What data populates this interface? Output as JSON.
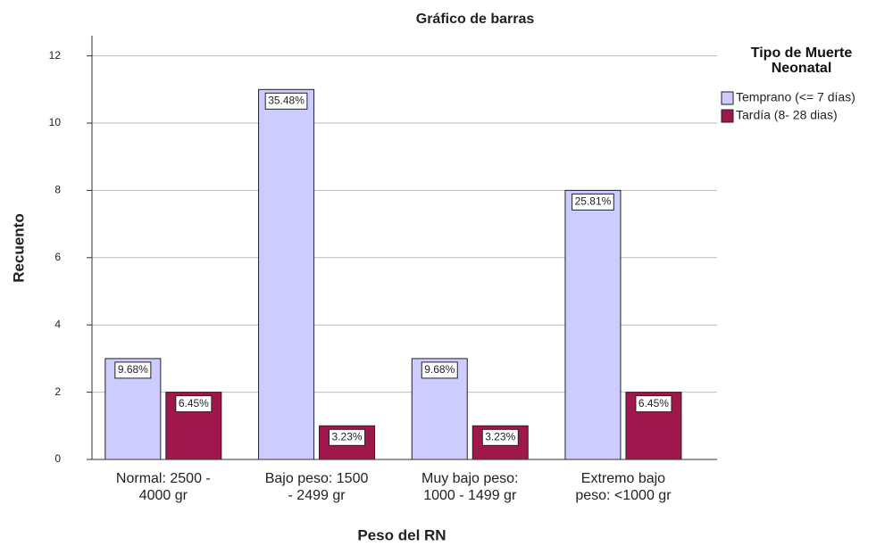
{
  "chart_data": {
    "type": "bar",
    "title": "Gráfico de barras",
    "x_label": "Peso del RN",
    "y_label": "Recuento",
    "categories": [
      "Normal: 2500 -\n4000 gr",
      "Bajo peso: 1500\n- 2499 gr",
      "Muy bajo peso:\n1000 - 1499 gr",
      "Extremo bajo\npeso: <1000 gr"
    ],
    "legend_title": "Tipo de Muerte\nNeonatal",
    "series": [
      {
        "name": "Temprano (<= 7 días)",
        "color": "#ccccff",
        "values": [
          3,
          11,
          3,
          8
        ],
        "percent_labels": [
          {
            "value": 9.68,
            "label": "9.68%"
          },
          {
            "value": 35.48,
            "label": "35.48%"
          },
          {
            "value": 9.68,
            "label": "9.68%"
          },
          {
            "value": 25.81,
            "label": "25.81%"
          }
        ]
      },
      {
        "name": "Tardía (8- 28 dias)",
        "color": "#a0174b",
        "values": [
          2,
          1,
          1,
          2
        ],
        "percent_labels": [
          {
            "value": 6.45,
            "label": "6.45%"
          },
          {
            "value": 3.23,
            "label": "3.23%"
          },
          {
            "value": 3.23,
            "label": "3.23%"
          },
          {
            "value": 6.45,
            "label": "6.45%"
          }
        ]
      }
    ],
    "ylim": [
      0,
      12.6
    ],
    "yticks": [
      0,
      2,
      4,
      6,
      8,
      10,
      12
    ],
    "grid": true,
    "legend": "right"
  }
}
